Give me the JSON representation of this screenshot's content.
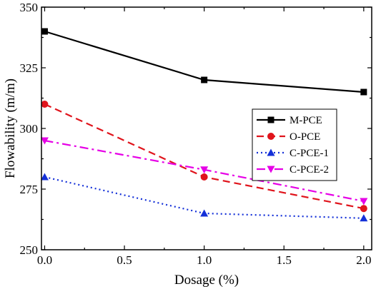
{
  "chart_data": {
    "type": "line",
    "title": "",
    "xlabel": "Dosage (%)",
    "ylabel": "Flowability (m/m)",
    "xlim": [
      -0.02,
      2.05
    ],
    "ylim": [
      250,
      350
    ],
    "x_ticks": [
      "0.0",
      "0.5",
      "1.0",
      "1.5",
      "2.0"
    ],
    "y_ticks": [
      "250",
      "275",
      "300",
      "325",
      "350"
    ],
    "legend_position": "right-middle",
    "grid": false,
    "x": [
      0.0,
      1.0,
      2.0
    ],
    "series": [
      {
        "name": "M-PCE",
        "values": [
          340,
          320,
          315
        ],
        "color": "#000000",
        "dash": "solid",
        "marker": "square"
      },
      {
        "name": "O-PCE",
        "values": [
          310,
          280,
          267
        ],
        "color": "#e0141c",
        "dash": "dash",
        "marker": "circle"
      },
      {
        "name": "C-PCE-1",
        "values": [
          280,
          265,
          263
        ],
        "color": "#1430d8",
        "dash": "dot",
        "marker": "triangle-up"
      },
      {
        "name": "C-PCE-2",
        "values": [
          295,
          283,
          270
        ],
        "color": "#e600e6",
        "dash": "dashdot",
        "marker": "triangle-down"
      }
    ]
  }
}
